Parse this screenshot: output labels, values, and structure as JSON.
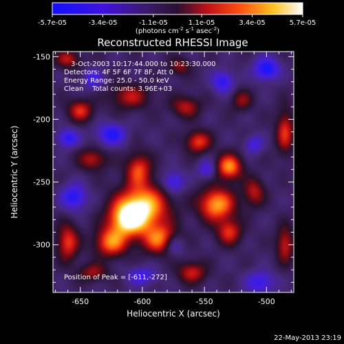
{
  "colorbar": {
    "tick_labels": [
      "-5.7e-05",
      "-3.4e-05",
      "-1.1e-05",
      "1.1e-05",
      "3.4e-05",
      "5.7e-05"
    ],
    "tick_values": [
      -5.7e-05,
      -3.4e-05,
      -1.1e-05,
      1.1e-05,
      3.4e-05,
      5.7e-05
    ],
    "range": [
      -5.7e-05,
      5.7e-05
    ],
    "units_main": "(photons cm",
    "units_exp1": "-2",
    "units_mid": " s",
    "units_exp2": "-1",
    "units_end": " asec",
    "units_exp3": "-2",
    "units_close": ")"
  },
  "chart_data": {
    "type": "heatmap",
    "title": "Reconstructed RHESSI Image",
    "xlabel": "Heliocentric X (arcsec)",
    "ylabel": "Heliocentric Y (arcsec)",
    "xlim": [
      -672,
      -478
    ],
    "ylim": [
      -338,
      -146
    ],
    "x_ticks": [
      -650,
      -600,
      -550,
      -500
    ],
    "y_ticks": [
      -150,
      -200,
      -250,
      -300
    ],
    "x_tick_labels": [
      "-650",
      "-600",
      "-550",
      "-500"
    ],
    "y_tick_labels": [
      "-150",
      "-200",
      "-250",
      "-300"
    ],
    "colormap": "rainbow/fire (blue-purple-red-orange-yellow-white)",
    "blobs": [
      {
        "x": -600,
        "y": -270,
        "sx": 14,
        "sy": 12,
        "a": 1.0
      },
      {
        "x": -612,
        "y": -280,
        "sx": 10,
        "sy": 9,
        "a": 0.9
      },
      {
        "x": -585,
        "y": -296,
        "sx": 10,
        "sy": 8,
        "a": 0.75
      },
      {
        "x": -625,
        "y": -298,
        "sx": 9,
        "sy": 8,
        "a": 0.75
      },
      {
        "x": -603,
        "y": -240,
        "sx": 7,
        "sy": 9,
        "a": 0.6
      },
      {
        "x": -540,
        "y": -268,
        "sx": 10,
        "sy": 9,
        "a": 0.85
      },
      {
        "x": -530,
        "y": -238,
        "sx": 7,
        "sy": 7,
        "a": 0.8
      },
      {
        "x": -530,
        "y": -290,
        "sx": 7,
        "sy": 7,
        "a": 0.55
      },
      {
        "x": -555,
        "y": -218,
        "sx": 7,
        "sy": 6,
        "a": 0.6
      },
      {
        "x": -565,
        "y": -190,
        "sx": 8,
        "sy": 6,
        "a": 0.45
      },
      {
        "x": -610,
        "y": -182,
        "sx": 11,
        "sy": 7,
        "a": 0.45
      },
      {
        "x": -650,
        "y": -193,
        "sx": 7,
        "sy": 6,
        "a": 0.55
      },
      {
        "x": -640,
        "y": -232,
        "sx": 8,
        "sy": 6,
        "a": 0.45
      },
      {
        "x": -660,
        "y": -298,
        "sx": 6,
        "sy": 10,
        "a": 0.6
      },
      {
        "x": -560,
        "y": -322,
        "sx": 8,
        "sy": 6,
        "a": 0.5
      },
      {
        "x": -510,
        "y": -258,
        "sx": 6,
        "sy": 8,
        "a": 0.45
      },
      {
        "x": -485,
        "y": -210,
        "sx": 5,
        "sy": 12,
        "a": 0.55
      },
      {
        "x": -485,
        "y": -300,
        "sx": 5,
        "sy": 10,
        "a": 0.5
      },
      {
        "x": -660,
        "y": -152,
        "sx": 7,
        "sy": 5,
        "a": 0.45
      },
      {
        "x": -520,
        "y": -185,
        "sx": 6,
        "sy": 6,
        "a": 0.35
      },
      {
        "x": -640,
        "y": -322,
        "sx": 8,
        "sy": 5,
        "a": 0.4
      },
      {
        "x": -570,
        "y": -158,
        "sx": 6,
        "sy": 5,
        "a": 0.35
      },
      {
        "x": -535,
        "y": -170,
        "sx": 6,
        "sy": 6,
        "a": -0.55
      },
      {
        "x": -500,
        "y": -160,
        "sx": 7,
        "sy": 6,
        "a": -0.7
      },
      {
        "x": -655,
        "y": -262,
        "sx": 7,
        "sy": 7,
        "a": -0.6
      },
      {
        "x": -575,
        "y": -250,
        "sx": 6,
        "sy": 6,
        "a": -0.5
      },
      {
        "x": -625,
        "y": -212,
        "sx": 8,
        "sy": 6,
        "a": -0.6
      },
      {
        "x": -660,
        "y": -215,
        "sx": 6,
        "sy": 5,
        "a": -0.55
      },
      {
        "x": -505,
        "y": -330,
        "sx": 8,
        "sy": 6,
        "a": -0.5
      },
      {
        "x": -575,
        "y": -300,
        "sx": 6,
        "sy": 6,
        "a": -0.45
      },
      {
        "x": -600,
        "y": -325,
        "sx": 8,
        "sy": 5,
        "a": -0.45
      },
      {
        "x": -548,
        "y": -240,
        "sx": 5,
        "sy": 5,
        "a": -0.4
      },
      {
        "x": -640,
        "y": -168,
        "sx": 5,
        "sy": 5,
        "a": -0.45
      },
      {
        "x": -510,
        "y": -220,
        "sx": 5,
        "sy": 5,
        "a": -0.4
      }
    ]
  },
  "annotations": {
    "line1": "3-Oct-2003 10:17:44.000 to 10:23:30.000",
    "line2": "Detectors: 4F 5F 6F 7F 8F, Att 0",
    "line3": "Energy Range: 25.0 - 50.0 keV",
    "line4": "Clean    Total counts: 3.96E+03",
    "peak": "Position of Peak = [-611,-272]"
  },
  "footer": {
    "timestamp": "22-May-2013 23:19"
  }
}
